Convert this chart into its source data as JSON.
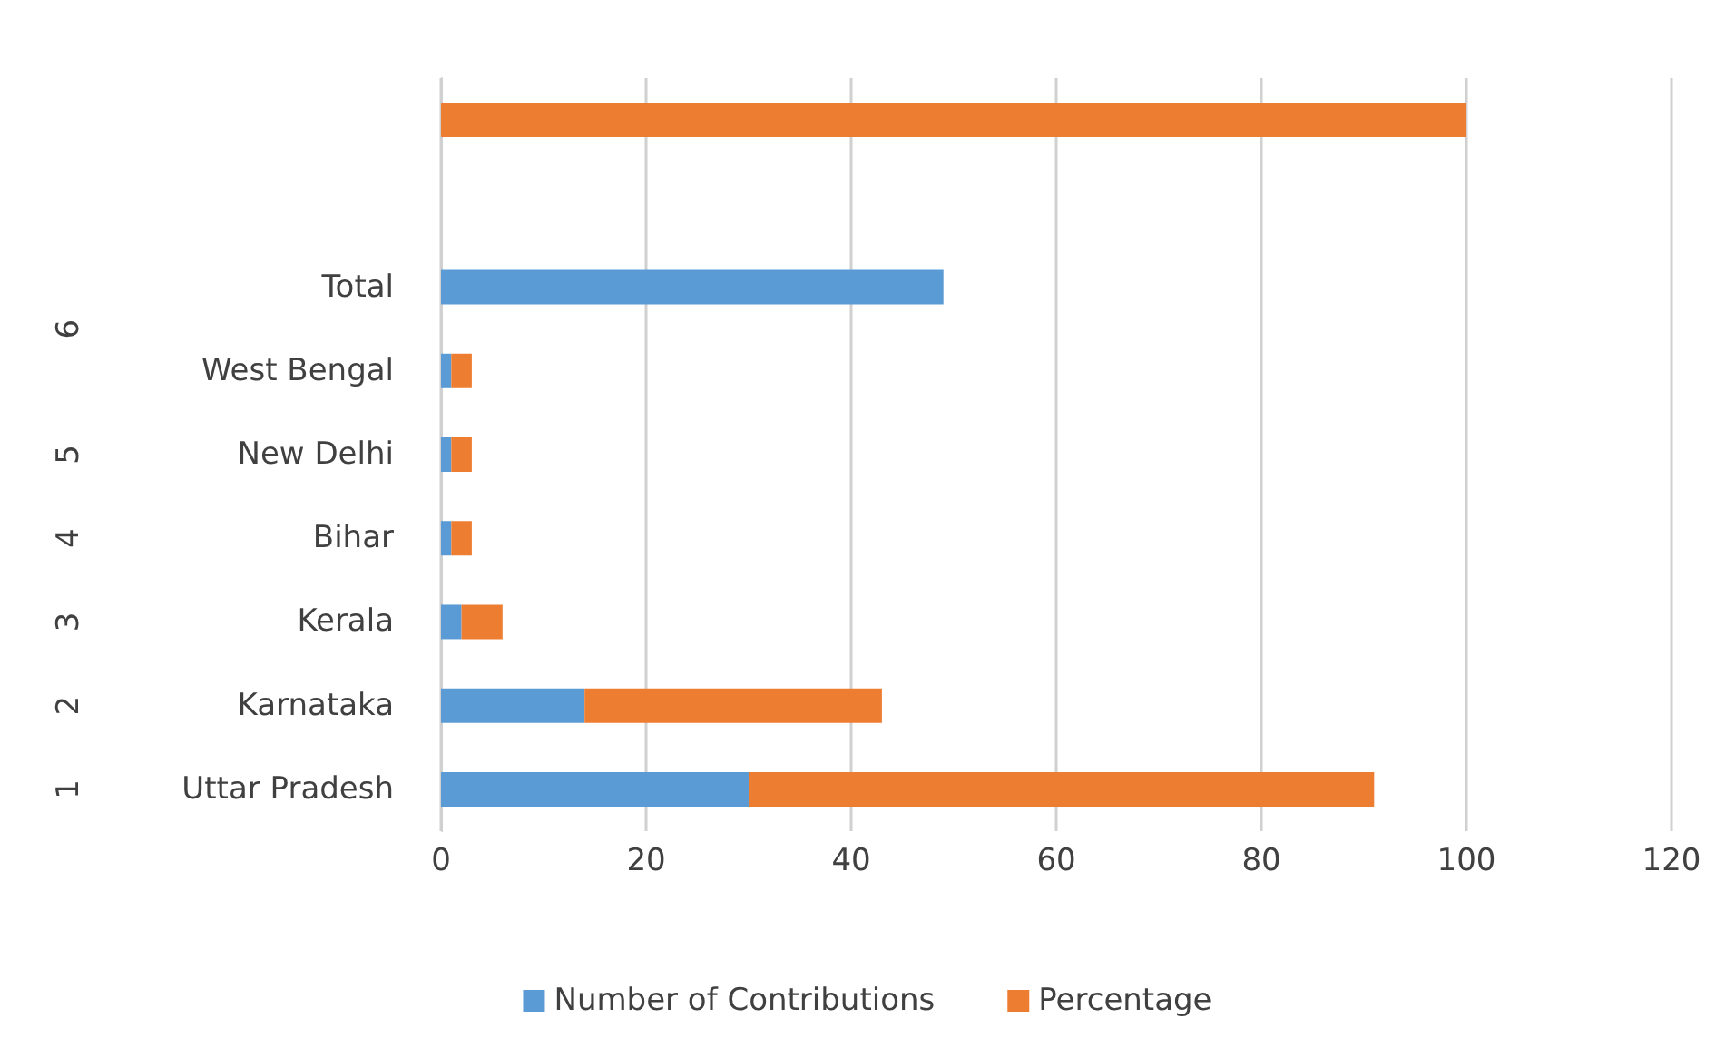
{
  "chart_data": {
    "type": "bar",
    "orientation": "horizontal",
    "stacked": true,
    "categories": [
      null,
      null,
      "Total",
      "West Bengal",
      "New Delhi",
      "Bihar",
      "Kerala",
      "Karnataka",
      "Uttar Pradesh"
    ],
    "series": [
      {
        "name": "Number of Contributions",
        "color": "#5b9bd5",
        "values": [
          null,
          null,
          49,
          1,
          1,
          1,
          2,
          14,
          30
        ]
      },
      {
        "name": "Percentage",
        "color": "#ed7d31",
        "values": [
          100,
          null,
          null,
          2,
          2,
          2,
          4,
          29,
          61
        ]
      }
    ],
    "xlim": [
      0,
      120
    ],
    "xticks": [
      0,
      20,
      40,
      60,
      80,
      100,
      120
    ],
    "annotations": [
      "6",
      "5",
      "4",
      "3",
      "2",
      "1"
    ],
    "grid": "x",
    "legend": "bottom"
  }
}
